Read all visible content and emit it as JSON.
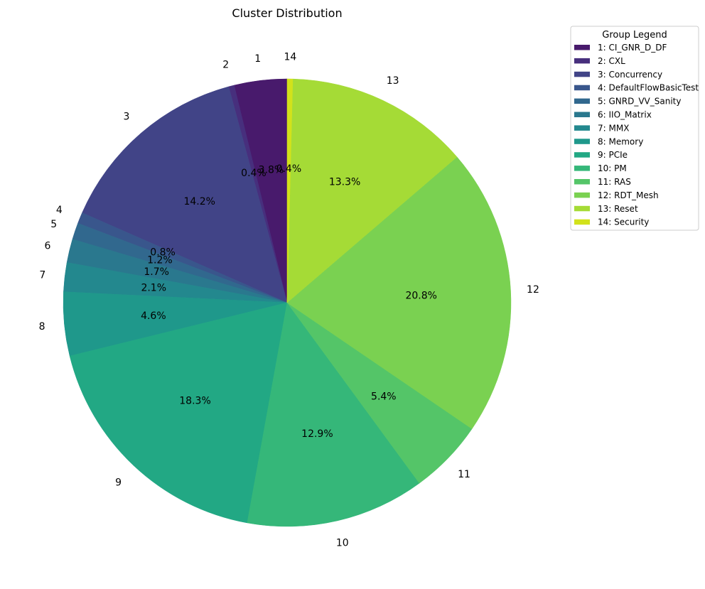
{
  "chart_data": {
    "type": "pie",
    "title": "Cluster Distribution",
    "legend": {
      "title": "Group Legend",
      "placement": "top-right"
    },
    "start_angle_deg": 90,
    "direction": "counterclockwise",
    "slices": [
      {
        "label": "1",
        "legend": "1: CI_GNR_D_DF",
        "value": 3.8,
        "pct_label": "3.8%",
        "color": "#481a6c"
      },
      {
        "label": "2",
        "legend": "2: CXL",
        "value": 0.4,
        "pct_label": "0.4%",
        "color": "#472f7d"
      },
      {
        "label": "3",
        "legend": "3: Concurrency",
        "value": 14.2,
        "pct_label": "14.2%",
        "color": "#414487"
      },
      {
        "label": "4",
        "legend": "4: DefaultFlowBasicTest",
        "value": 0.8,
        "pct_label": "0.8%",
        "color": "#39568c"
      },
      {
        "label": "5",
        "legend": "5: GNRD_VV_Sanity",
        "value": 1.2,
        "pct_label": "1.2%",
        "color": "#31688e"
      },
      {
        "label": "6",
        "legend": "6: IIO_Matrix",
        "value": 1.7,
        "pct_label": "1.7%",
        "color": "#2a788e"
      },
      {
        "label": "7",
        "legend": "7: MMX",
        "value": 2.1,
        "pct_label": "2.1%",
        "color": "#23888e"
      },
      {
        "label": "8",
        "legend": "8: Memory",
        "value": 4.6,
        "pct_label": "4.6%",
        "color": "#1f988b"
      },
      {
        "label": "9",
        "legend": "9: PCIe",
        "value": 18.3,
        "pct_label": "18.3%",
        "color": "#22a884"
      },
      {
        "label": "10",
        "legend": "10: PM",
        "value": 12.9,
        "pct_label": "12.9%",
        "color": "#35b779"
      },
      {
        "label": "11",
        "legend": "11: RAS",
        "value": 5.4,
        "pct_label": "5.4%",
        "color": "#54c568"
      },
      {
        "label": "12",
        "legend": "12: RDT_Mesh",
        "value": 20.8,
        "pct_label": "20.8%",
        "color": "#7ad151"
      },
      {
        "label": "13",
        "legend": "13: Reset",
        "value": 13.3,
        "pct_label": "13.3%",
        "color": "#a5db36"
      },
      {
        "label": "14",
        "legend": "14: Security",
        "value": 0.4,
        "pct_label": "0.4%",
        "color": "#d2e21b"
      }
    ]
  }
}
